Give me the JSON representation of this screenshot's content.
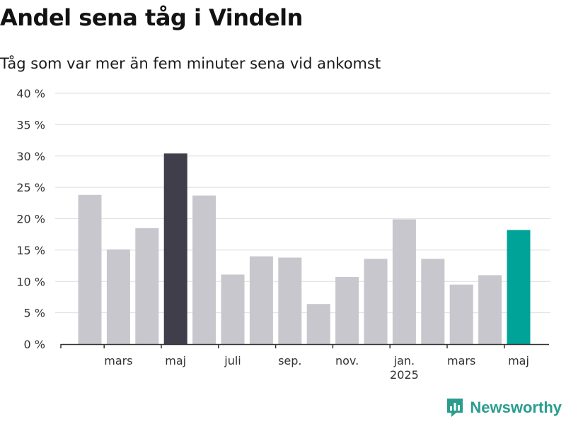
{
  "title": "Andel sena tåg i Vindeln",
  "subtitle": "Tåg som var mer än fem minuter sena vid ankomst",
  "brand": {
    "name": "Newsworthy",
    "color": "#2a9d8f"
  },
  "colors": {
    "default_bar": "#c8c7cd",
    "highlight_dark": "#3f3e4a",
    "highlight_teal": "#00a398",
    "grid": "#dddddd",
    "axis": "#333333"
  },
  "chart_data": {
    "type": "bar",
    "title": "Andel sena tåg i Vindeln",
    "subtitle": "Tåg som var mer än fem minuter sena vid ankomst",
    "xlabel": "",
    "ylabel": "",
    "ylim": [
      0,
      40
    ],
    "y_ticks": [
      0,
      5,
      10,
      15,
      20,
      25,
      30,
      35,
      40
    ],
    "y_tick_labels": [
      "0 %",
      "5 %",
      "10 %",
      "15 %",
      "20 %",
      "25 %",
      "30 %",
      "35 %",
      "40 %"
    ],
    "categories": [
      "2024-02",
      "2024-03",
      "2024-04",
      "2024-05",
      "2024-06",
      "2024-07",
      "2024-08",
      "2024-09",
      "2024-10",
      "2024-11",
      "2024-12",
      "2025-01",
      "2025-02",
      "2025-03",
      "2025-04",
      "2025-05"
    ],
    "values": [
      23.8,
      15.1,
      18.5,
      30.4,
      23.7,
      11.1,
      14.0,
      13.8,
      6.4,
      10.7,
      13.6,
      19.9,
      13.6,
      9.5,
      11.0,
      18.2
    ],
    "highlight": {
      "2024-05": "dark",
      "2025-05": "teal"
    },
    "x_tick_labels": [
      {
        "category": "2024-03",
        "label": "mars"
      },
      {
        "category": "2024-05",
        "label": "maj"
      },
      {
        "category": "2024-07",
        "label": "juli"
      },
      {
        "category": "2024-09",
        "label": "sep."
      },
      {
        "category": "2024-11",
        "label": "nov."
      },
      {
        "category": "2025-01",
        "label": "jan.",
        "sublabel": "2025"
      },
      {
        "category": "2025-03",
        "label": "mars"
      },
      {
        "category": "2025-05",
        "label": "maj"
      }
    ],
    "grid": true,
    "legend": "none"
  }
}
